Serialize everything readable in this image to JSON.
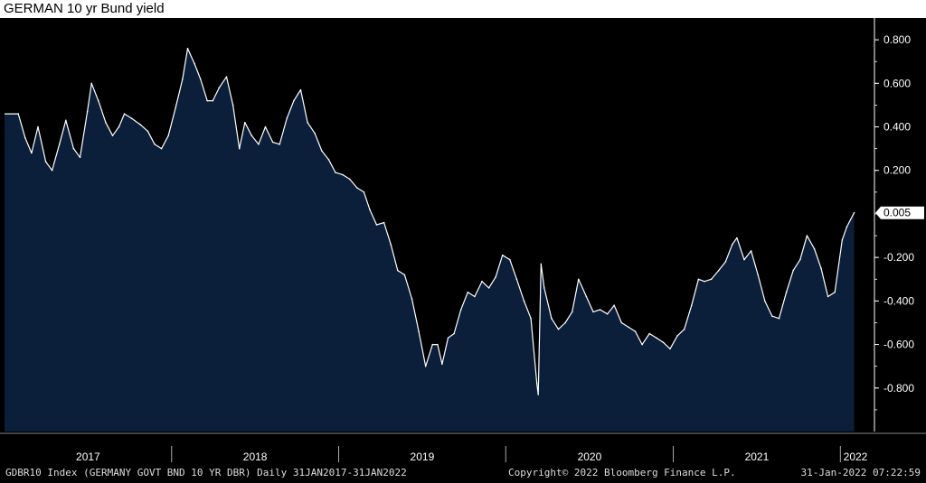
{
  "chart_data": {
    "type": "area",
    "title": "GERMAN 10 yr Bund yield",
    "xlabel": "",
    "ylabel": "",
    "x_ticks": [
      "2017",
      "2018",
      "2019",
      "2020",
      "2021",
      "2022"
    ],
    "y_ticks": [
      "0.800",
      "0.600",
      "0.400",
      "0.200",
      "-0.200",
      "-0.400",
      "-0.600",
      "-0.800"
    ],
    "ylim": [
      -1.0,
      0.9
    ],
    "last_value_label": "0.005",
    "series": [
      {
        "x": [
          "2017-01-31",
          "2017-02-15",
          "2017-03-01",
          "2017-03-15",
          "2017-04-01",
          "2017-04-15",
          "2017-05-01",
          "2017-05-15",
          "2017-06-01",
          "2017-06-15",
          "2017-07-01",
          "2017-07-10",
          "2017-07-25",
          "2017-08-10",
          "2017-08-25",
          "2017-09-08",
          "2017-09-20",
          "2017-10-05",
          "2017-10-25",
          "2017-11-10",
          "2017-11-25",
          "2017-12-10",
          "2017-12-25",
          "2018-01-10",
          "2018-01-25",
          "2018-02-05",
          "2018-02-20",
          "2018-03-05",
          "2018-03-20",
          "2018-04-01",
          "2018-04-15",
          "2018-05-01",
          "2018-05-15",
          "2018-05-29",
          "2018-06-10",
          "2018-06-25",
          "2018-07-10",
          "2018-07-25",
          "2018-08-10",
          "2018-08-25",
          "2018-09-10",
          "2018-09-25",
          "2018-10-10",
          "2018-10-25",
          "2018-11-10",
          "2018-11-25",
          "2018-12-10",
          "2018-12-25",
          "2019-01-10",
          "2019-01-25",
          "2019-02-10",
          "2019-02-25",
          "2019-03-10",
          "2019-03-25",
          "2019-04-10",
          "2019-04-25",
          "2019-05-10",
          "2019-05-25",
          "2019-06-10",
          "2019-06-25",
          "2019-07-10",
          "2019-07-25",
          "2019-08-05",
          "2019-08-15",
          "2019-08-28",
          "2019-09-10",
          "2019-09-25",
          "2019-10-10",
          "2019-10-25",
          "2019-11-10",
          "2019-11-25",
          "2019-12-10",
          "2019-12-25",
          "2020-01-10",
          "2020-01-25",
          "2020-02-10",
          "2020-02-25",
          "2020-03-09",
          "2020-03-12",
          "2020-03-18",
          "2020-03-25",
          "2020-04-10",
          "2020-04-25",
          "2020-05-10",
          "2020-05-25",
          "2020-06-08",
          "2020-06-25",
          "2020-07-10",
          "2020-07-25",
          "2020-08-10",
          "2020-08-25",
          "2020-09-10",
          "2020-09-25",
          "2020-10-10",
          "2020-10-25",
          "2020-11-10",
          "2020-11-25",
          "2020-12-10",
          "2020-12-25",
          "2021-01-10",
          "2021-01-25",
          "2021-02-10",
          "2021-02-25",
          "2021-03-10",
          "2021-03-25",
          "2021-04-10",
          "2021-04-25",
          "2021-05-10",
          "2021-05-20",
          "2021-06-05",
          "2021-06-20",
          "2021-07-05",
          "2021-07-20",
          "2021-08-05",
          "2021-08-20",
          "2021-09-05",
          "2021-09-20",
          "2021-10-05",
          "2021-10-20",
          "2021-11-05",
          "2021-11-20",
          "2021-12-05",
          "2021-12-20",
          "2022-01-05",
          "2022-01-15",
          "2022-01-31"
        ],
        "values": [
          0.46,
          0.35,
          0.28,
          0.4,
          0.24,
          0.2,
          0.32,
          0.43,
          0.3,
          0.26,
          0.47,
          0.6,
          0.52,
          0.42,
          0.36,
          0.4,
          0.46,
          0.44,
          0.41,
          0.38,
          0.32,
          0.3,
          0.36,
          0.49,
          0.62,
          0.76,
          0.69,
          0.62,
          0.52,
          0.52,
          0.58,
          0.63,
          0.5,
          0.3,
          0.42,
          0.36,
          0.32,
          0.4,
          0.33,
          0.32,
          0.44,
          0.52,
          0.57,
          0.42,
          0.37,
          0.29,
          0.25,
          0.19,
          0.18,
          0.16,
          0.12,
          0.1,
          0.02,
          -0.05,
          -0.04,
          -0.14,
          -0.26,
          -0.28,
          -0.39,
          -0.54,
          -0.7,
          -0.6,
          -0.6,
          -0.69,
          -0.57,
          -0.55,
          -0.44,
          -0.36,
          -0.38,
          -0.31,
          -0.34,
          -0.29,
          -0.19,
          -0.21,
          -0.3,
          -0.4,
          -0.48,
          -0.78,
          -0.83,
          -0.23,
          -0.34,
          -0.48,
          -0.53,
          -0.5,
          -0.45,
          -0.3,
          -0.38,
          -0.45,
          -0.44,
          -0.46,
          -0.42,
          -0.5,
          -0.52,
          -0.54,
          -0.6,
          -0.55,
          -0.57,
          -0.59,
          -0.62,
          -0.56,
          -0.53,
          -0.42,
          -0.3,
          -0.31,
          -0.3,
          -0.26,
          -0.22,
          -0.14,
          -0.11,
          -0.21,
          -0.17,
          -0.28,
          -0.4,
          -0.47,
          -0.48,
          -0.36,
          -0.26,
          -0.21,
          -0.1,
          -0.16,
          -0.25,
          -0.38,
          -0.36,
          -0.12,
          -0.06,
          0.005
        ]
      }
    ]
  },
  "footer": {
    "left": "GDBR10 Index (GERMANY GOVT BND 10 YR DBR)  Daily 31JAN2017-31JAN2022",
    "center": "Copyright© 2022 Bloomberg Finance L.P.",
    "right": "31-Jan-2022 07:22:59"
  },
  "colors": {
    "area_fill": "#0b1f3a",
    "line": "#ffffff",
    "background": "#000000",
    "axis_text": "#ffffff"
  }
}
